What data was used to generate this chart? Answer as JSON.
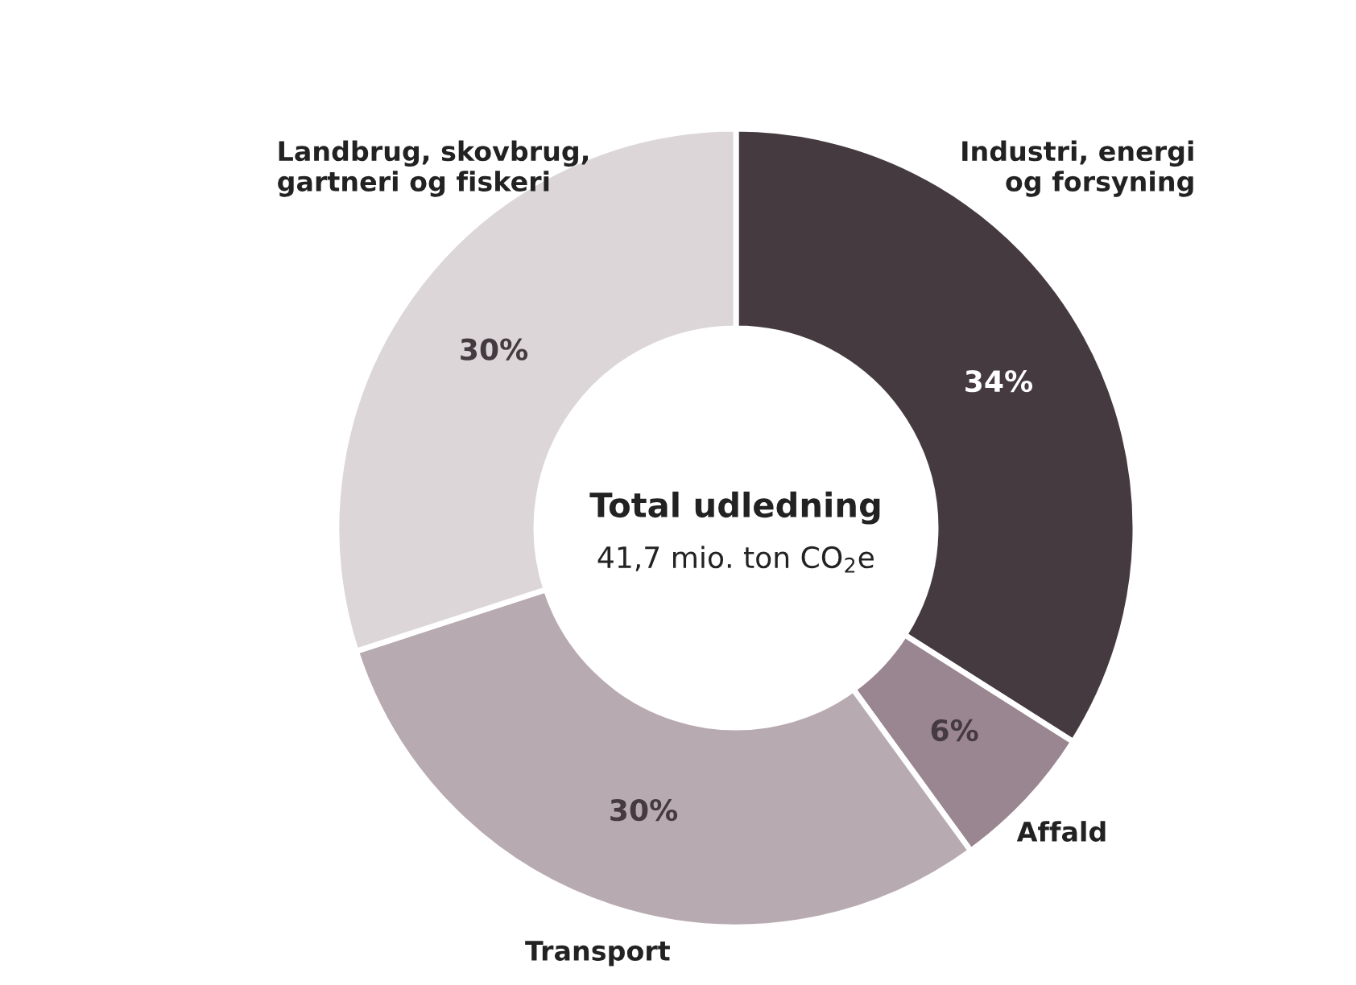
{
  "chart_data": {
    "type": "donut",
    "categories": [
      "Industri, energi\nog forsyning",
      "Affald",
      "Transport",
      "Landbrug, skovbrug,\ngartneri og fiskeri"
    ],
    "values": [
      34,
      6,
      30,
      30
    ],
    "colors": [
      "#453a3f",
      "#9a8690",
      "#b8aab1",
      "#dcd6d8"
    ],
    "value_labels": [
      "34%",
      "6%",
      "30%",
      "30%"
    ],
    "annotations": [
      "Total udledning",
      "41,7 mio. ton CO$_{2}$e"
    ]
  }
}
